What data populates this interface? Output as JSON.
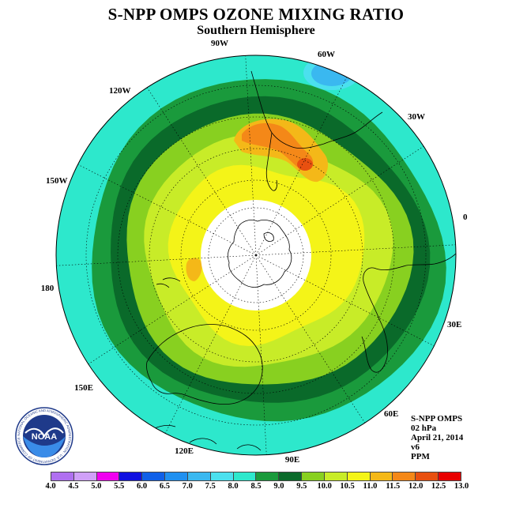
{
  "header": {
    "title": "S-NPP OMPS OZONE MIXING RATIO",
    "subtitle": "Southern Hemisphere"
  },
  "map": {
    "projection": "south-polar-stereographic",
    "longitude_labels": [
      "0",
      "30E",
      "60E",
      "90E",
      "120E",
      "150E",
      "180",
      "150W",
      "120W",
      "90W",
      "60W",
      "30W"
    ],
    "level_colors": {
      "7.0": "#3ab8f0",
      "7.5": "#4be0ee",
      "8.0": "#2de8cc",
      "8.5": "#1a9a3c",
      "9.0": "#0a6a2a",
      "9.5": "#88d020",
      "10.0": "#c8ec28",
      "10.5": "#f4f418",
      "11.0": "#f4b818",
      "11.5": "#f48818",
      "12.0": "#e85010"
    },
    "missing_color": "#ffffff"
  },
  "info": {
    "product": "S-NPP OMPS",
    "level": "02 hPa",
    "date": "April 21, 2014",
    "version": "v6",
    "units": "PPM"
  },
  "logo": {
    "text": "NOAA",
    "ring_text": "NATIONAL OCEANIC AND ATMOSPHERIC ADMINISTRATION · U.S. DEPARTMENT OF COMMERCE"
  },
  "colorbar": {
    "ticks": [
      "4.0",
      "4.5",
      "5.0",
      "5.5",
      "6.0",
      "6.5",
      "7.0",
      "7.5",
      "8.0",
      "8.5",
      "9.0",
      "9.5",
      "10.0",
      "10.5",
      "11.0",
      "11.5",
      "12.0",
      "12.5",
      "13.0"
    ],
    "colors": [
      "#b070f0",
      "#d0a0f8",
      "#f000f0",
      "#1010e0",
      "#1060e8",
      "#2090f0",
      "#3ab8f0",
      "#4be0ee",
      "#2de8cc",
      "#1a9a3c",
      "#0a6a2a",
      "#88d020",
      "#c8ec28",
      "#f4f418",
      "#f4b818",
      "#f48818",
      "#e85010",
      "#e80000",
      "#8a5a3a"
    ]
  }
}
